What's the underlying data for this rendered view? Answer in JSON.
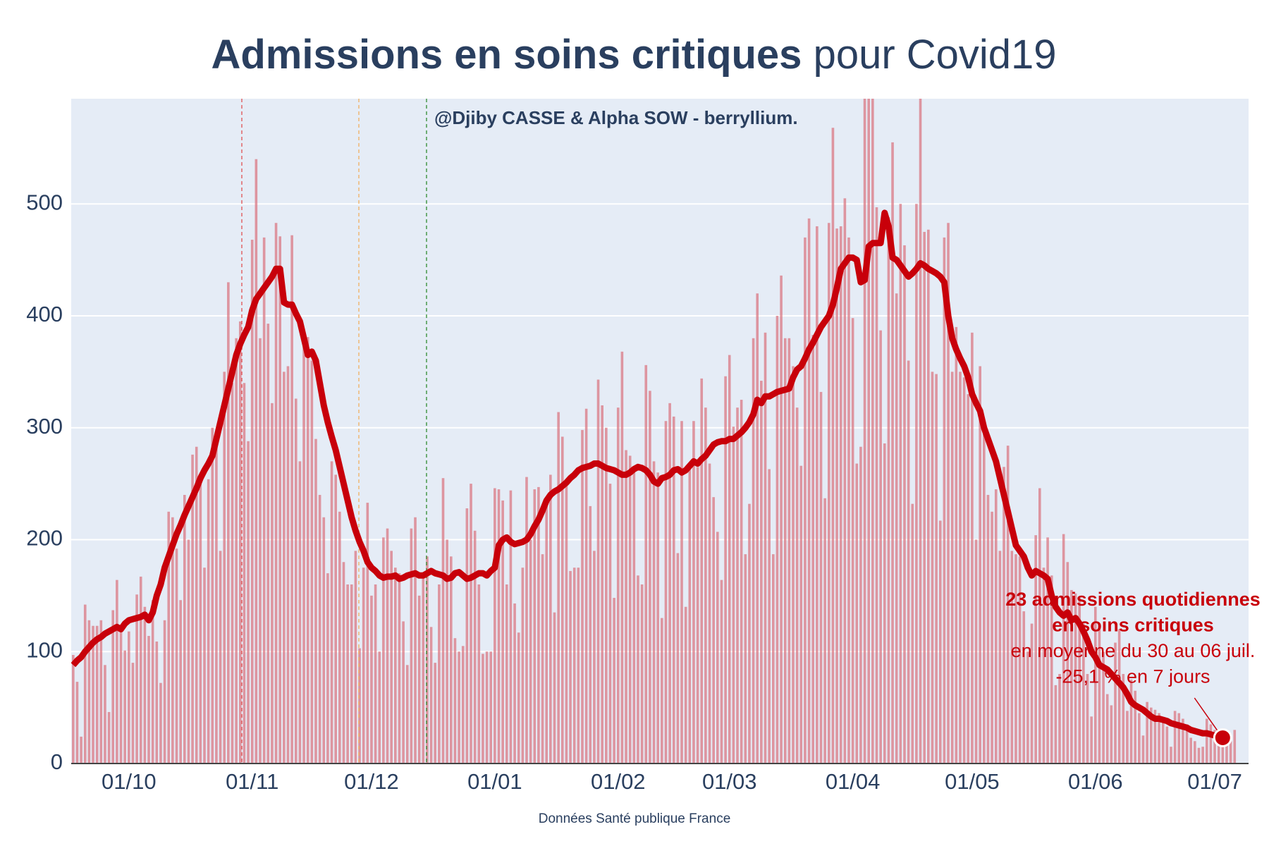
{
  "chart_data": {
    "type": "bar",
    "title_parts": [
      "Admissions en soins critiques",
      "pour Covid19"
    ],
    "credits": "@Djiby CASSE & Alpha SOW - berryllium.",
    "source": "Données Santé publique France",
    "annotation": [
      "23 admissions quotidiennes",
      "en soins critiques",
      "en moyenne du 30 au 06 juil.",
      "-25,1 % en 7 jours"
    ],
    "categories": [
      null,
      null,
      null,
      null,
      null,
      null,
      null,
      null,
      null,
      null,
      null,
      null,
      null,
      null,
      "01/10",
      null,
      null,
      null,
      null,
      null,
      null,
      null,
      null,
      null,
      null,
      null,
      null,
      null,
      null,
      null,
      null,
      null,
      null,
      null,
      null,
      null,
      null,
      null,
      null,
      null,
      null,
      null,
      null,
      null,
      null,
      "01/11",
      null,
      null,
      null,
      null,
      null,
      null,
      null,
      null,
      null,
      null,
      null,
      null,
      null,
      null,
      null,
      null,
      null,
      null,
      null,
      null,
      null,
      null,
      null,
      null,
      null,
      null,
      null,
      null,
      null,
      "01/12",
      null,
      null,
      null,
      null,
      null,
      null,
      null,
      null,
      null,
      null,
      null,
      null,
      null,
      null,
      null,
      null,
      null,
      null,
      null,
      null,
      null,
      null,
      null,
      null,
      null,
      null,
      null,
      null,
      null,
      null,
      "01/01",
      null,
      null,
      null,
      null,
      null,
      null,
      null,
      null,
      null,
      null,
      null,
      null,
      null,
      null,
      null,
      null,
      null,
      null,
      null,
      null,
      null,
      null,
      null,
      null,
      null,
      null,
      null,
      null,
      null,
      null,
      "01/02",
      null,
      null,
      null,
      null,
      null,
      null,
      null,
      null,
      null,
      null,
      null,
      null,
      null,
      null,
      null,
      null,
      null,
      null,
      null,
      null,
      null,
      null,
      null,
      null,
      null,
      null,
      null,
      "01/03",
      null,
      null,
      null,
      null,
      null,
      null,
      null,
      null,
      null,
      null,
      null,
      null,
      null,
      null,
      null,
      null,
      null,
      null,
      null,
      null,
      null,
      null,
      null,
      null,
      null,
      null,
      null,
      null,
      null,
      null,
      "01/04",
      null,
      null,
      null,
      null,
      null,
      null,
      null,
      null,
      null,
      null,
      null,
      null,
      null,
      null,
      null,
      null,
      null,
      null,
      null,
      null,
      null,
      null,
      null,
      null,
      null,
      null,
      null,
      null,
      null,
      "01/05",
      null,
      null,
      null,
      null,
      null,
      null,
      null,
      null,
      null,
      null,
      null,
      null,
      null,
      null,
      null,
      null,
      null,
      null,
      null,
      null,
      null,
      null,
      null,
      null,
      null,
      null,
      null,
      null,
      null,
      null,
      "01/06",
      null,
      null,
      null,
      null,
      null,
      null,
      null,
      null,
      null,
      null,
      null,
      null,
      null,
      null,
      null,
      null,
      null,
      null,
      null,
      null,
      null,
      null,
      null,
      null,
      null,
      null,
      null,
      null,
      null,
      "01/07",
      null,
      null,
      null,
      null,
      null
    ],
    "series": [
      {
        "type": "bar",
        "color": "#d9737e",
        "values": [
          97,
          73,
          24,
          142,
          128,
          123,
          123,
          128,
          88,
          46,
          137,
          164,
          120,
          101,
          118,
          90,
          151,
          167,
          140,
          114,
          146,
          109,
          72,
          128,
          225,
          220,
          192,
          146,
          240,
          200,
          276,
          283,
          250,
          175,
          254,
          300,
          290,
          190,
          350,
          430,
          340,
          380,
          395,
          340,
          288,
          468,
          540,
          380,
          470,
          393,
          322,
          483,
          471,
          350,
          355,
          472,
          326,
          270,
          386,
          381,
          360,
          290,
          240,
          220,
          170,
          270,
          258,
          225,
          180,
          160,
          160,
          190,
          103,
          175,
          233,
          150,
          160,
          100,
          202,
          210,
          190,
          175,
          170,
          127,
          88,
          210,
          220,
          150,
          170,
          185,
          122,
          90,
          160,
          255,
          200,
          185,
          112,
          100,
          105,
          228,
          250,
          208,
          160,
          98,
          100,
          100,
          246,
          245,
          235,
          160,
          244,
          143,
          117,
          175,
          256,
          200,
          245,
          247,
          187,
          230,
          258,
          135,
          314,
          292,
          250,
          172,
          175,
          175,
          298,
          317,
          230,
          190,
          343,
          320,
          300,
          250,
          148,
          318,
          368,
          280,
          275,
          260,
          168,
          160,
          356,
          333,
          270,
          260,
          130,
          306,
          322,
          310,
          188,
          306,
          140,
          268,
          306,
          265,
          344,
          318,
          268,
          238,
          207,
          164,
          346,
          365,
          301,
          318,
          325,
          187,
          232,
          380,
          420,
          342,
          385,
          263,
          187,
          400,
          436,
          380,
          380,
          355,
          318,
          266,
          470,
          487,
          383,
          480,
          332,
          237,
          483,
          568,
          478,
          480,
          505,
          470,
          398,
          268,
          283,
          600,
          620,
          600,
          497,
          387,
          286,
          488,
          555,
          420,
          500,
          463,
          360,
          232,
          500,
          600,
          475,
          477,
          350,
          348,
          217,
          470,
          483,
          350,
          390,
          350,
          345,
          330,
          385,
          200,
          355,
          302,
          240,
          225,
          245,
          190,
          265,
          284,
          190,
          187,
          185,
          136,
          100,
          125,
          204,
          246,
          175,
          202,
          168,
          70,
          80,
          205,
          180,
          155,
          152,
          148,
          125,
          80,
          42,
          140,
          125,
          100,
          62,
          52,
          108,
          120,
          80,
          47,
          75,
          65,
          45,
          25,
          55,
          50,
          48,
          45,
          37,
          33,
          15,
          47,
          45,
          40,
          35,
          23,
          20,
          14,
          15,
          40,
          35,
          30,
          22,
          18,
          28,
          20,
          30
        ]
      },
      {
        "type": "line",
        "color": "#c8000a",
        "values": [
          88,
          92,
          95,
          100,
          104,
          108,
          111,
          113,
          116,
          118,
          120,
          122,
          120,
          125,
          128,
          129,
          130,
          131,
          133,
          128,
          135,
          150,
          160,
          175,
          185,
          195,
          205,
          213,
          222,
          230,
          238,
          246,
          255,
          262,
          268,
          275,
          290,
          305,
          320,
          335,
          350,
          365,
          375,
          383,
          390,
          405,
          415,
          420,
          425,
          430,
          435,
          442,
          442,
          412,
          410,
          410,
          402,
          395,
          380,
          365,
          368,
          360,
          340,
          320,
          305,
          292,
          280,
          265,
          250,
          235,
          220,
          208,
          198,
          190,
          180,
          175,
          172,
          168,
          166,
          167,
          167,
          168,
          165,
          166,
          168,
          169,
          170,
          168,
          168,
          170,
          172,
          170,
          169,
          168,
          165,
          166,
          170,
          171,
          168,
          165,
          166,
          168,
          170,
          170,
          168,
          172,
          175,
          195,
          200,
          202,
          198,
          196,
          197,
          198,
          200,
          205,
          212,
          218,
          226,
          235,
          240,
          243,
          245,
          248,
          251,
          255,
          258,
          262,
          264,
          265,
          266,
          268,
          268,
          266,
          264,
          263,
          262,
          260,
          258,
          258,
          260,
          263,
          265,
          264,
          262,
          258,
          252,
          250,
          255,
          256,
          258,
          262,
          263,
          260,
          262,
          266,
          270,
          268,
          272,
          275,
          280,
          285,
          287,
          288,
          288,
          290,
          290,
          293,
          296,
          300,
          305,
          312,
          325,
          322,
          328,
          328,
          330,
          332,
          333,
          334,
          335,
          345,
          352,
          355,
          362,
          370,
          376,
          383,
          390,
          395,
          400,
          410,
          425,
          442,
          447,
          452,
          452,
          450,
          430,
          432,
          462,
          465,
          465,
          465,
          492,
          480,
          452,
          450,
          445,
          440,
          435,
          438,
          442,
          447,
          445,
          442,
          440,
          438,
          435,
          430,
          400,
          380,
          370,
          362,
          355,
          345,
          330,
          322,
          315,
          300,
          290,
          280,
          270,
          255,
          240,
          225,
          210,
          195,
          190,
          185,
          175,
          168,
          172,
          170,
          168,
          165,
          150,
          140,
          135,
          132,
          135,
          128,
          130,
          125,
          118,
          110,
          100,
          95,
          88,
          86,
          84,
          80,
          76,
          72,
          68,
          62,
          55,
          52,
          50,
          48,
          45,
          42,
          40,
          40,
          39,
          38,
          36,
          35,
          34,
          33,
          32,
          30,
          29,
          28,
          27,
          27,
          26,
          25,
          24,
          23,
          null,
          null,
          null
        ]
      }
    ],
    "ylim": [
      0,
      594
    ],
    "yticks": [
      0,
      100,
      200,
      300,
      400,
      500
    ],
    "grid": true
  }
}
